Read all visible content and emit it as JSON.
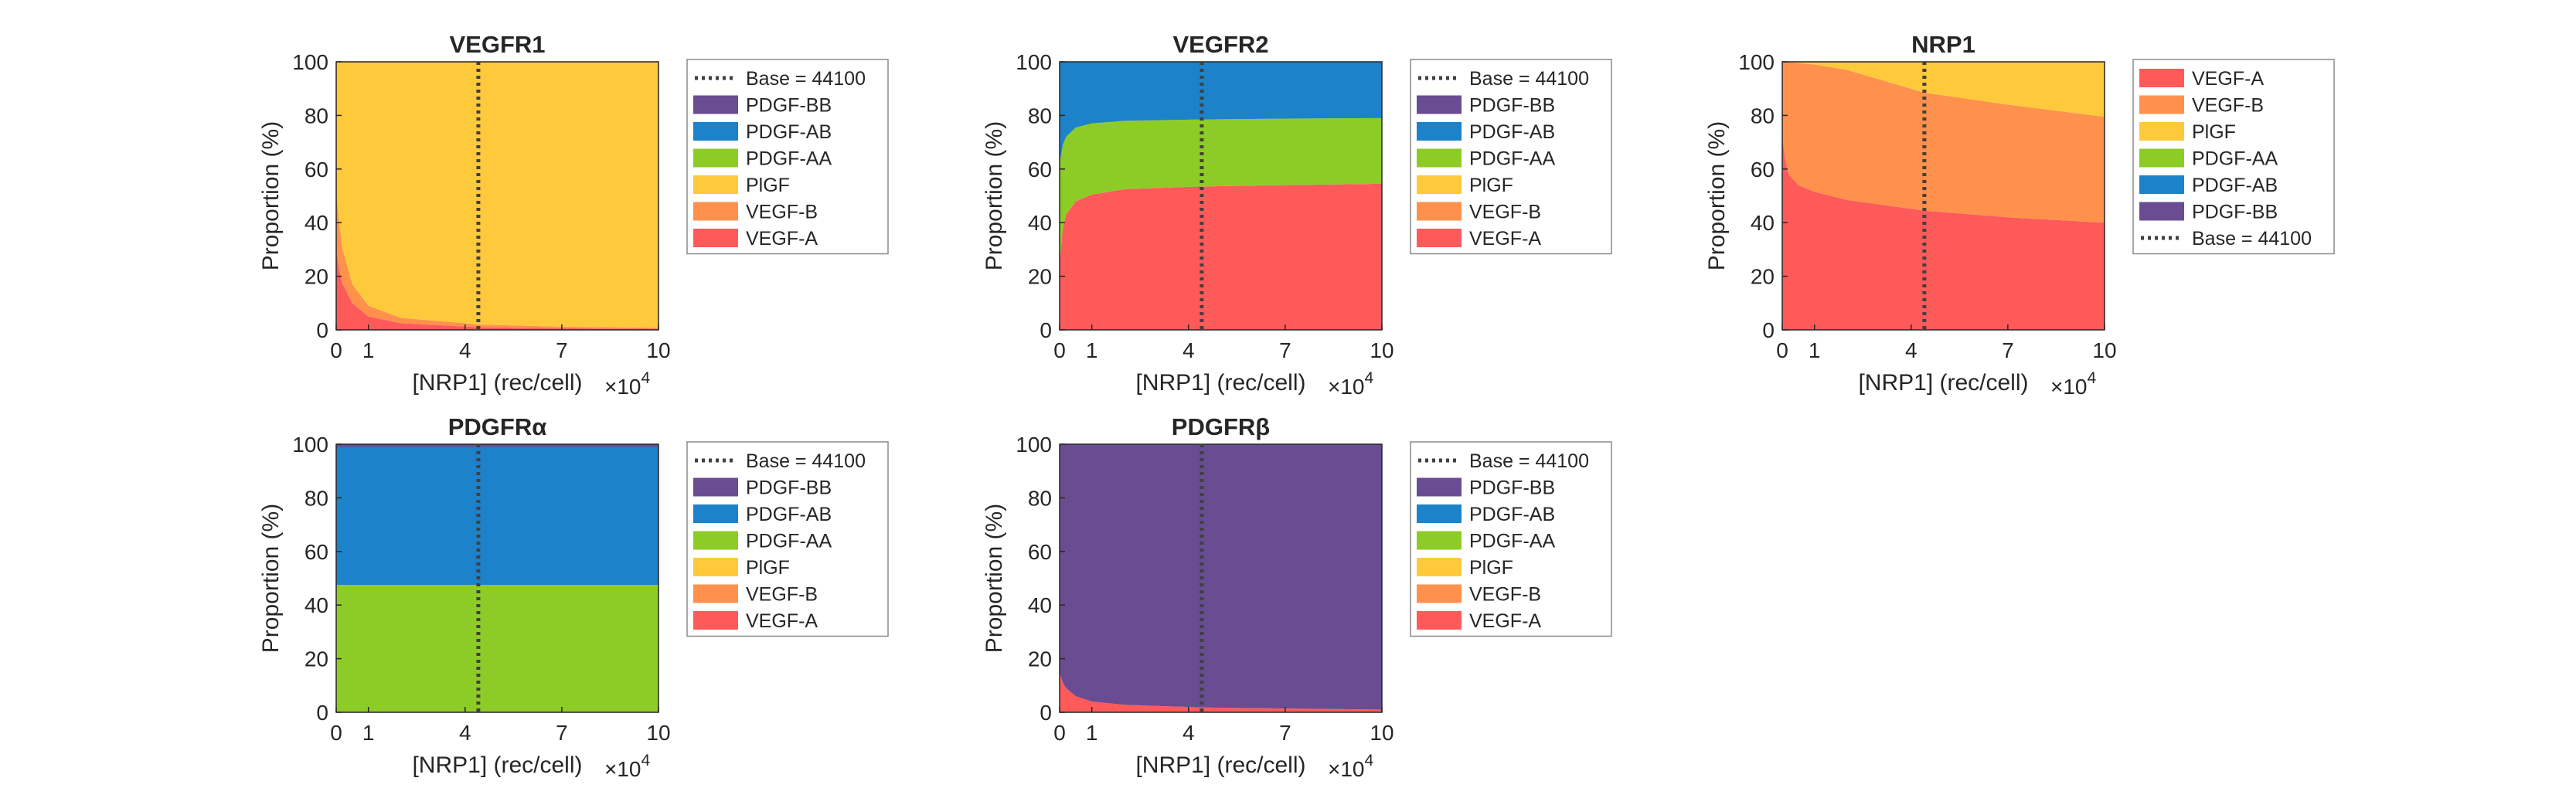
{
  "figure": {
    "exponent_label": "×10",
    "exponent_power": "4"
  },
  "chart_data": [
    {
      "type": "area",
      "title": "VEGFR1",
      "xlabel": "[NRP1] (rec/cell)",
      "ylabel": "Proportion (%)",
      "xlim": [
        0,
        100000
      ],
      "ylim": [
        0,
        100
      ],
      "xticks": [
        0,
        10000,
        40000,
        70000,
        100000
      ],
      "xtick_labels": [
        "0",
        "1",
        "4",
        "7",
        "10"
      ],
      "yticks": [
        0,
        20,
        40,
        60,
        80,
        100
      ],
      "x_multiplier": "×10^4",
      "stacked": true,
      "baseline_x": 44100,
      "legend_placement": "outside-right",
      "legend": [
        "Base = 44100",
        "PDGF-BB",
        "PDGF-AB",
        "PDGF-AA",
        "PlGF",
        "VEGF-B",
        "VEGF-A"
      ],
      "x": [
        0,
        1000,
        2000,
        5000,
        10000,
        20000,
        44100,
        70000,
        100000
      ],
      "series": [
        {
          "name": "VEGF-A",
          "color": "#ff5a5a",
          "values": [
            30,
            22,
            17,
            10,
            5,
            2.5,
            1,
            0.6,
            0.4
          ]
        },
        {
          "name": "VEGF-B",
          "color": "#ff914d",
          "values": [
            22,
            17,
            13,
            7,
            4,
            2,
            1,
            0.6,
            0.4
          ]
        },
        {
          "name": "PlGF",
          "color": "#ffc93c",
          "values": [
            48,
            61,
            70,
            83,
            91,
            95.5,
            98,
            98.8,
            99.2
          ]
        },
        {
          "name": "PDGF-AA",
          "color": "#8dcc26",
          "values": [
            0,
            0,
            0,
            0,
            0,
            0,
            0,
            0,
            0
          ]
        },
        {
          "name": "PDGF-AB",
          "color": "#1c82c9",
          "values": [
            0,
            0,
            0,
            0,
            0,
            0,
            0,
            0,
            0
          ]
        },
        {
          "name": "PDGF-BB",
          "color": "#6a4c93",
          "values": [
            0,
            0,
            0,
            0,
            0,
            0,
            0,
            0,
            0
          ]
        }
      ]
    },
    {
      "type": "area",
      "title": "VEGFR2",
      "xlabel": "[NRP1] (rec/cell)",
      "ylabel": "Proportion (%)",
      "xlim": [
        0,
        100000
      ],
      "ylim": [
        0,
        100
      ],
      "xticks": [
        0,
        10000,
        40000,
        70000,
        100000
      ],
      "xtick_labels": [
        "0",
        "1",
        "4",
        "7",
        "10"
      ],
      "yticks": [
        0,
        20,
        40,
        60,
        80,
        100
      ],
      "x_multiplier": "×10^4",
      "stacked": true,
      "baseline_x": 44100,
      "legend_placement": "outside-right",
      "legend": [
        "Base = 44100",
        "PDGF-BB",
        "PDGF-AB",
        "PDGF-AA",
        "PlGF",
        "VEGF-B",
        "VEGF-A"
      ],
      "x": [
        0,
        1000,
        2000,
        5000,
        10000,
        20000,
        44100,
        70000,
        100000
      ],
      "series": [
        {
          "name": "VEGF-A",
          "color": "#ff5a5a",
          "values": [
            25,
            38,
            43,
            48,
            50.5,
            52.5,
            53.5,
            54,
            54.5
          ]
        },
        {
          "name": "VEGF-B",
          "color": "#ff914d",
          "values": [
            0,
            0,
            0,
            0,
            0,
            0,
            0,
            0,
            0
          ]
        },
        {
          "name": "PlGF",
          "color": "#ffc93c",
          "values": [
            0,
            0,
            0,
            0,
            0,
            0,
            0,
            0,
            0
          ]
        },
        {
          "name": "PDGF-AA",
          "color": "#8dcc26",
          "values": [
            37,
            31,
            29,
            27.5,
            26.5,
            25.5,
            25,
            24.8,
            24.5
          ]
        },
        {
          "name": "PDGF-AB",
          "color": "#1c82c9",
          "values": [
            38,
            31,
            28,
            24.5,
            23,
            22,
            21.5,
            21.2,
            21
          ]
        },
        {
          "name": "PDGF-BB",
          "color": "#6a4c93",
          "values": [
            0,
            0,
            0,
            0,
            0,
            0,
            0,
            0,
            0
          ]
        }
      ]
    },
    {
      "type": "area",
      "title": "NRP1",
      "xlabel": "[NRP1] (rec/cell)",
      "ylabel": "Proportion (%)",
      "xlim": [
        0,
        100000
      ],
      "ylim": [
        0,
        100
      ],
      "xticks": [
        0,
        10000,
        40000,
        70000,
        100000
      ],
      "xtick_labels": [
        "0",
        "1",
        "4",
        "7",
        "10"
      ],
      "yticks": [
        0,
        20,
        40,
        60,
        80,
        100
      ],
      "x_multiplier": "×10^4",
      "stacked": true,
      "baseline_x": 44100,
      "legend_placement": "outside-right",
      "legend": [
        "VEGF-A",
        "VEGF-B",
        "PlGF",
        "PDGF-AA",
        "PDGF-AB",
        "PDGF-BB",
        "Base = 44100"
      ],
      "x": [
        0,
        1000,
        2000,
        5000,
        10000,
        20000,
        44100,
        70000,
        100000
      ],
      "series": [
        {
          "name": "VEGF-A",
          "color": "#ff5a5a",
          "values": [
            72,
            63,
            58,
            54,
            51.5,
            48.5,
            44.5,
            42,
            40
          ]
        },
        {
          "name": "VEGF-B",
          "color": "#ff914d",
          "values": [
            28,
            37,
            42,
            45.5,
            47.5,
            48.5,
            44,
            42,
            39.5
          ]
        },
        {
          "name": "PlGF",
          "color": "#ffc93c",
          "values": [
            0,
            0,
            0,
            0.5,
            1,
            3,
            11.5,
            16,
            20.5
          ]
        },
        {
          "name": "PDGF-AA",
          "color": "#8dcc26",
          "values": [
            0,
            0,
            0,
            0,
            0,
            0,
            0,
            0,
            0
          ]
        },
        {
          "name": "PDGF-AB",
          "color": "#1c82c9",
          "values": [
            0,
            0,
            0,
            0,
            0,
            0,
            0,
            0,
            0
          ]
        },
        {
          "name": "PDGF-BB",
          "color": "#6a4c93",
          "values": [
            0,
            0,
            0,
            0,
            0,
            0,
            0,
            0,
            0
          ]
        }
      ]
    },
    {
      "type": "area",
      "title": "PDGFRα",
      "xlabel": "[NRP1] (rec/cell)",
      "ylabel": "Proportion (%)",
      "xlim": [
        0,
        100000
      ],
      "ylim": [
        0,
        100
      ],
      "xticks": [
        0,
        10000,
        40000,
        70000,
        100000
      ],
      "xtick_labels": [
        "0",
        "1",
        "4",
        "7",
        "10"
      ],
      "yticks": [
        0,
        20,
        40,
        60,
        80,
        100
      ],
      "x_multiplier": "×10^4",
      "stacked": true,
      "baseline_x": 44100,
      "legend_placement": "outside-right",
      "legend": [
        "Base = 44100",
        "PDGF-BB",
        "PDGF-AB",
        "PDGF-AA",
        "PlGF",
        "VEGF-B",
        "VEGF-A"
      ],
      "x": [
        0,
        100000
      ],
      "series": [
        {
          "name": "VEGF-A",
          "color": "#ff5a5a",
          "values": [
            0,
            0
          ]
        },
        {
          "name": "VEGF-B",
          "color": "#ff914d",
          "values": [
            0,
            0
          ]
        },
        {
          "name": "PlGF",
          "color": "#ffc93c",
          "values": [
            0,
            0
          ]
        },
        {
          "name": "PDGF-AA",
          "color": "#8dcc26",
          "values": [
            47.5,
            47.5
          ]
        },
        {
          "name": "PDGF-AB",
          "color": "#1c82c9",
          "values": [
            51.5,
            51.5
          ]
        },
        {
          "name": "PDGF-BB",
          "color": "#6a4c93",
          "values": [
            1,
            1
          ]
        }
      ]
    },
    {
      "type": "area",
      "title": "PDGFRβ",
      "xlabel": "[NRP1] (rec/cell)",
      "ylabel": "Proportion (%)",
      "xlim": [
        0,
        100000
      ],
      "ylim": [
        0,
        100
      ],
      "xticks": [
        0,
        10000,
        40000,
        70000,
        100000
      ],
      "xtick_labels": [
        "0",
        "1",
        "4",
        "7",
        "10"
      ],
      "yticks": [
        0,
        20,
        40,
        60,
        80,
        100
      ],
      "x_multiplier": "×10^4",
      "stacked": true,
      "baseline_x": 44100,
      "legend_placement": "outside-right",
      "legend": [
        "Base = 44100",
        "PDGF-BB",
        "PDGF-AB",
        "PDGF-AA",
        "PlGF",
        "VEGF-B",
        "VEGF-A"
      ],
      "x": [
        0,
        1000,
        2000,
        5000,
        10000,
        20000,
        44100,
        70000,
        100000
      ],
      "series": [
        {
          "name": "VEGF-A",
          "color": "#ff5a5a",
          "values": [
            15,
            11,
            9,
            6,
            4,
            2.8,
            1.8,
            1.4,
            1
          ]
        },
        {
          "name": "VEGF-B",
          "color": "#ff914d",
          "values": [
            0,
            0,
            0,
            0,
            0,
            0,
            0,
            0,
            0
          ]
        },
        {
          "name": "PlGF",
          "color": "#ffc93c",
          "values": [
            0,
            0,
            0,
            0,
            0,
            0,
            0,
            0,
            0
          ]
        },
        {
          "name": "PDGF-AA",
          "color": "#8dcc26",
          "values": [
            0,
            0,
            0,
            0,
            0,
            0,
            0,
            0,
            0
          ]
        },
        {
          "name": "PDGF-AB",
          "color": "#1c82c9",
          "values": [
            0,
            0,
            0,
            0,
            0,
            0,
            0,
            0,
            0
          ]
        },
        {
          "name": "PDGF-BB",
          "color": "#6a4c93",
          "values": [
            85,
            89,
            91,
            94,
            96,
            97.2,
            98.2,
            98.6,
            99
          ]
        }
      ]
    }
  ]
}
